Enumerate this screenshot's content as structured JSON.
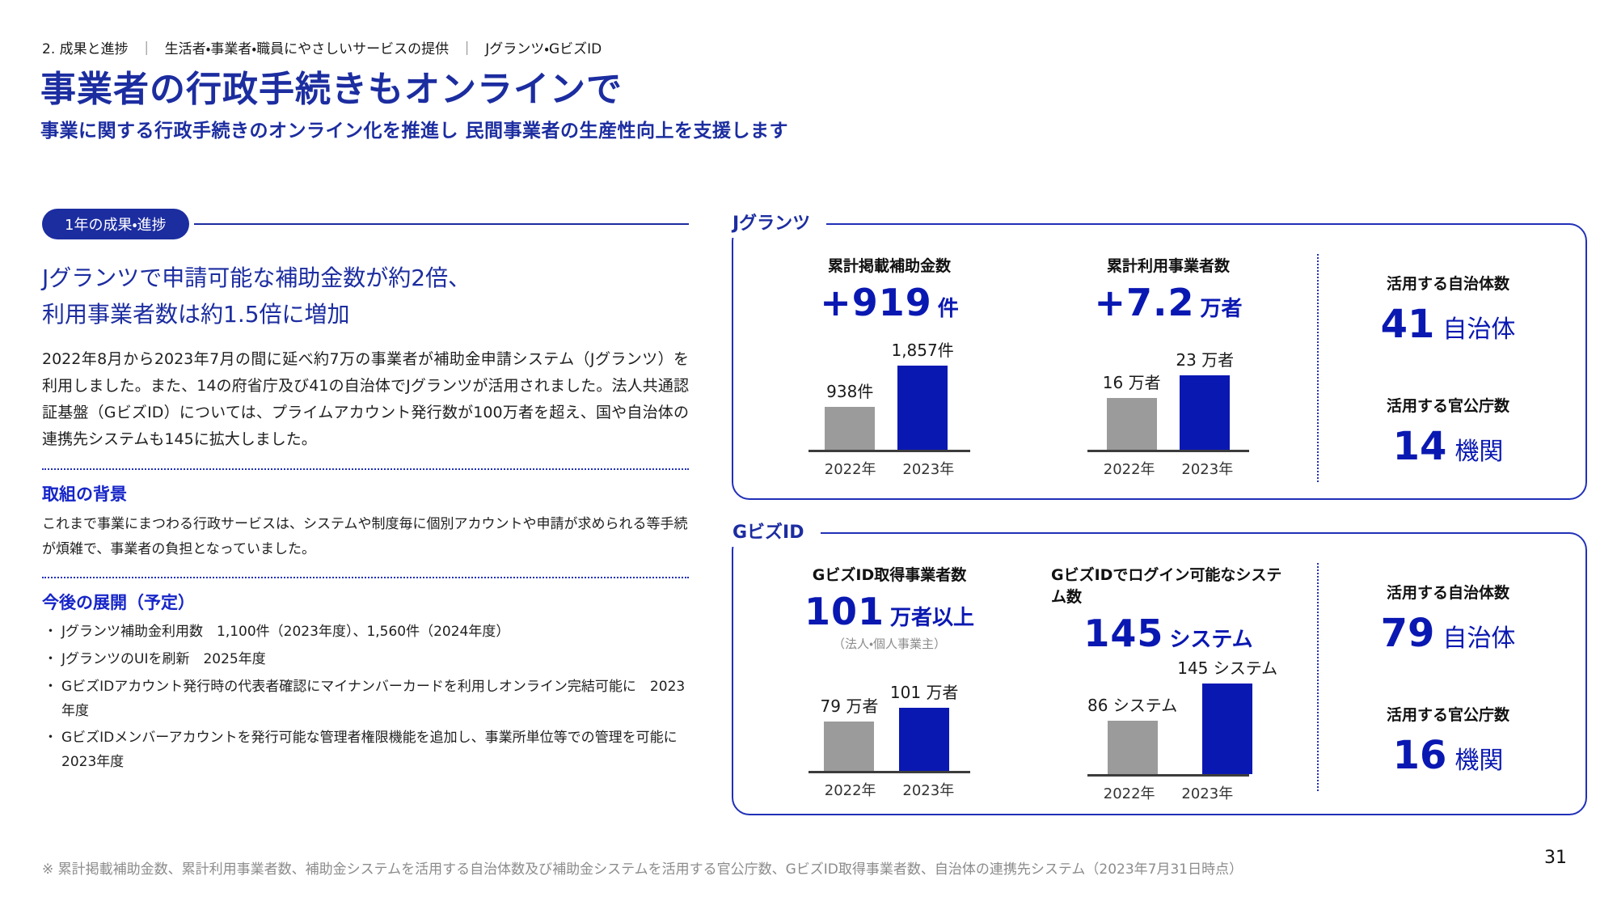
{
  "page": {
    "breadcrumb": {
      "items": [
        "2. 成果と進捗",
        "生活者・事業者・職員にやさしいサービスの提供",
        "Jグランツ・GビズID"
      ],
      "separator": "｜"
    },
    "title": "事業者の行政手続きもオンラインで",
    "subtitle": "事業に関する行政手続きのオンライン化を推進し 民間事業者の生産性向上を支援します",
    "footnote": "※ 累計掲載補助金数、累計利用事業者数、補助金システムを活用する自治体数及び補助金システムを活用する官公庁数、GビズID取得事業者数、自治体の連携先システム（2023年7月31日時点）",
    "page_number": "31"
  },
  "colors": {
    "primary_blue": "#1c2da0",
    "accent_blue": "#0a18b2",
    "bar_gray": "#9b9b9b",
    "panel_border_blue": "#2130b8"
  },
  "left": {
    "badge": "1年の成果・進捗",
    "headline": {
      "line1": "Jグランツで申請可能な補助金数が約2倍、",
      "line2": "利用事業者数は約1.5倍に増加"
    },
    "paragraph": "2022年8月から2023年7月の間に延べ約7万の事業者が補助金申請システム（Jグランツ）を利用しました。また、14の府省庁及び41の自治体でJグランツが活用されました。法人共通認証基盤（GビズID）については、プライムアカウント発行数が100万者を超え、国や自治体の連携先システムも145に拡大しました。",
    "background": {
      "heading": "取組の背景",
      "text": "これまで事業にまつわる行政サービスは、システムや制度毎に個別アカウントや申請が求められる等手続が煩雑で、事業者の負担となっていました。"
    },
    "future": {
      "heading": "今後の展開（予定）",
      "bullets": [
        "Jグランツ補助金利用数　1,100件（2023年度）、1,560件（2024年度）",
        "JグランツのUIを刷新　2025年度",
        "GビズIDアカウント発行時の代表者確認にマイナンバーカードを利用しオンライン完結可能に　2023年度",
        "GビズIDメンバーアカウントを発行可能な管理者権限機能を追加し、事業所単位等での管理を可能に　2023年度"
      ]
    }
  },
  "panels": {
    "jgrants": {
      "label": "Jグランツ",
      "stats": [
        {
          "label": "累計掲載補助金数",
          "value": "+919",
          "unit": "件"
        },
        {
          "label": "累計利用事業者数",
          "value": "+7.2",
          "unit": "万者"
        }
      ],
      "side_stats": [
        {
          "label": "活用する自治体数",
          "value": "41",
          "unit": "自治体"
        },
        {
          "label": "活用する官公庁数",
          "value": "14",
          "unit": "機関"
        }
      ]
    },
    "gbizid": {
      "label": "GビズID",
      "stats": [
        {
          "label": "GビズID取得事業者数",
          "value": "101",
          "unit": "万者以上",
          "note": "（法人・個人事業主）"
        },
        {
          "label": "GビズIDでログイン可能なシステム数",
          "value": "145",
          "unit": "システム"
        }
      ],
      "side_stats": [
        {
          "label": "活用する自治体数",
          "value": "79",
          "unit": "自治体"
        },
        {
          "label": "活用する官公庁数",
          "value": "16",
          "unit": "機関"
        }
      ]
    }
  },
  "chart_data": [
    {
      "type": "bar",
      "panel": "Jグランツ",
      "title": "累計掲載補助金数",
      "categories": [
        "2022年",
        "2023年"
      ],
      "values": [
        938,
        1857
      ],
      "value_labels": [
        "938件",
        "1,857件"
      ],
      "ylim": [
        0,
        2000
      ],
      "colors": [
        "#9b9b9b",
        "#0a18b2"
      ],
      "grid": false,
      "legend": "none"
    },
    {
      "type": "bar",
      "panel": "Jグランツ",
      "title": "累計利用事業者数",
      "categories": [
        "2022年",
        "2023年"
      ],
      "values": [
        16,
        23
      ],
      "value_labels": [
        "16 万者",
        "23 万者"
      ],
      "ylim": [
        0,
        28
      ],
      "colors": [
        "#9b9b9b",
        "#0a18b2"
      ],
      "grid": false,
      "legend": "none"
    },
    {
      "type": "bar",
      "panel": "GビズID",
      "title": "GビズID取得事業者数",
      "categories": [
        "2022年",
        "2023年"
      ],
      "values": [
        79,
        101
      ],
      "value_labels": [
        "79 万者",
        "101 万者"
      ],
      "ylim": [
        0,
        145
      ],
      "colors": [
        "#9b9b9b",
        "#0a18b2"
      ],
      "grid": false,
      "legend": "none"
    },
    {
      "type": "bar",
      "panel": "GビズID",
      "title": "GビズIDでログイン可能なシステム数",
      "categories": [
        "2022年",
        "2023年"
      ],
      "values": [
        86,
        145
      ],
      "value_labels": [
        "86 システム",
        "145 システム"
      ],
      "ylim": [
        0,
        145
      ],
      "colors": [
        "#9b9b9b",
        "#0a18b2"
      ],
      "grid": false,
      "legend": "none"
    }
  ]
}
